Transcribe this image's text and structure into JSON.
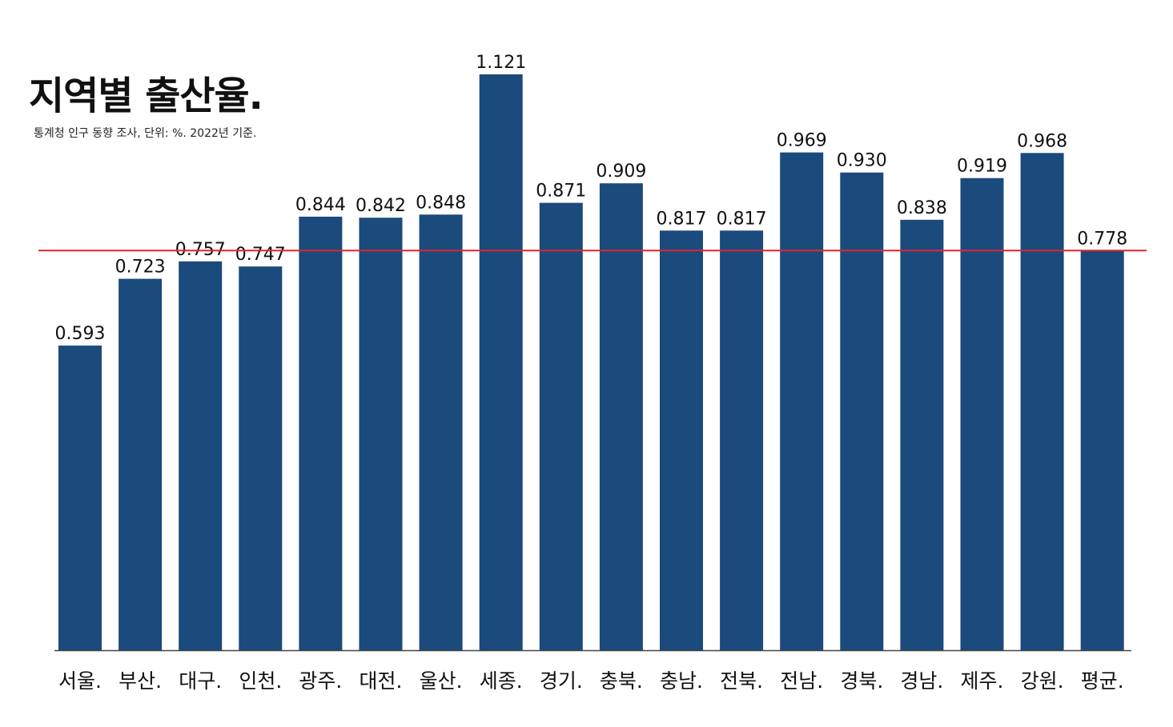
{
  "chart_data": {
    "type": "bar",
    "title": "지역별 출산율.",
    "subtitle": "통계청 인구 동향 조사, 단위: %. 2022년 기준.",
    "categories": [
      "서울.",
      "부산.",
      "대구.",
      "인천.",
      "광주.",
      "대전.",
      "울산.",
      "세종.",
      "경기.",
      "충북.",
      "충남.",
      "전북.",
      "전남.",
      "경북.",
      "경남.",
      "제주.",
      "강원.",
      "평균."
    ],
    "values": [
      0.593,
      0.723,
      0.757,
      0.747,
      0.844,
      0.842,
      0.848,
      1.121,
      0.871,
      0.909,
      0.817,
      0.817,
      0.969,
      0.93,
      0.838,
      0.919,
      0.968,
      0.778
    ],
    "value_labels": [
      "0.593",
      "0.723",
      "0.757",
      "0.747",
      "0.844",
      "0.842",
      "0.848",
      "1.121",
      "0.871",
      "0.909",
      "0.817",
      "0.817",
      "0.969",
      "0.930",
      "0.838",
      "0.919",
      "0.968",
      "0.778"
    ],
    "ylim": [
      0,
      1.121
    ],
    "reference_line": {
      "value": 0.778,
      "color": "#e0262a"
    },
    "bar_color": "#1b4a7c",
    "grid": false,
    "legend": "none"
  }
}
